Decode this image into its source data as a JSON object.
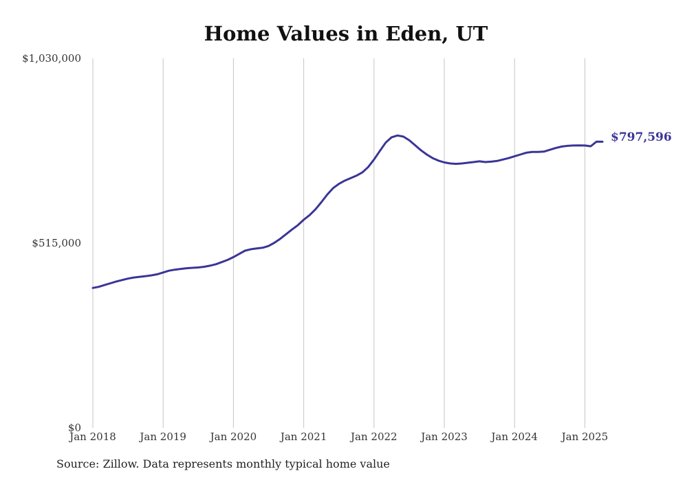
{
  "chart_data": {
    "type": "line",
    "title": "Home Values in Eden, UT",
    "source": "Source: Zillow. Data represents monthly typical home value",
    "ylim": [
      0,
      1030000
    ],
    "y_ticks": [
      {
        "value": 0,
        "label": "$0"
      },
      {
        "value": 515000,
        "label": "$515,000"
      },
      {
        "value": 1030000,
        "label": "$1,030,000"
      }
    ],
    "x_ticks": [
      {
        "date": "2018-01",
        "label": "Jan 2018"
      },
      {
        "date": "2019-01",
        "label": "Jan 2019"
      },
      {
        "date": "2020-01",
        "label": "Jan 2020"
      },
      {
        "date": "2021-01",
        "label": "Jan 2021"
      },
      {
        "date": "2022-01",
        "label": "Jan 2022"
      },
      {
        "date": "2023-01",
        "label": "Jan 2023"
      },
      {
        "date": "2024-01",
        "label": "Jan 2024"
      },
      {
        "date": "2025-01",
        "label": "Jan 2025"
      }
    ],
    "grid": {
      "vertical": true,
      "horizontal": false
    },
    "end_label": "$797,596",
    "colors": {
      "line": "#3a3597",
      "grid": "#c4c4c4"
    },
    "series": [
      {
        "x": [
          "2018-01",
          "2018-02",
          "2018-03",
          "2018-04",
          "2018-05",
          "2018-06",
          "2018-07",
          "2018-08",
          "2018-09",
          "2018-10",
          "2018-11",
          "2018-12",
          "2019-01",
          "2019-02",
          "2019-03",
          "2019-04",
          "2019-05",
          "2019-06",
          "2019-07",
          "2019-08",
          "2019-09",
          "2019-10",
          "2019-11",
          "2019-12",
          "2020-01",
          "2020-02",
          "2020-03",
          "2020-04",
          "2020-05",
          "2020-06",
          "2020-07",
          "2020-08",
          "2020-09",
          "2020-10",
          "2020-11",
          "2020-12",
          "2021-01",
          "2021-02",
          "2021-03",
          "2021-04",
          "2021-05",
          "2021-06",
          "2021-07",
          "2021-08",
          "2021-09",
          "2021-10",
          "2021-11",
          "2021-12",
          "2022-01",
          "2022-02",
          "2022-03",
          "2022-04",
          "2022-05",
          "2022-06",
          "2022-07",
          "2022-08",
          "2022-09",
          "2022-10",
          "2022-11",
          "2022-12",
          "2023-01",
          "2023-02",
          "2023-03",
          "2023-04",
          "2023-05",
          "2023-06",
          "2023-07",
          "2023-08",
          "2023-09",
          "2023-10",
          "2023-11",
          "2023-12",
          "2024-01",
          "2024-02",
          "2024-03",
          "2024-04",
          "2024-05",
          "2024-06",
          "2024-07",
          "2024-08",
          "2024-09",
          "2024-10",
          "2024-11",
          "2024-12",
          "2025-01",
          "2025-02",
          "2025-03",
          "2025-04"
        ],
        "values": [
          390000,
          393000,
          398000,
          403000,
          408000,
          412000,
          416000,
          419000,
          421000,
          423000,
          425000,
          428000,
          433000,
          438000,
          441000,
          443000,
          445000,
          446000,
          447000,
          449000,
          452000,
          456000,
          462000,
          468000,
          476000,
          485000,
          494000,
          498000,
          500000,
          502000,
          507000,
          516000,
          527000,
          540000,
          553000,
          565000,
          580000,
          593000,
          609000,
          629000,
          650000,
          668000,
          680000,
          689000,
          696000,
          703000,
          712000,
          727000,
          748000,
          772000,
          795000,
          810000,
          815000,
          812000,
          802000,
          788000,
          774000,
          762000,
          752000,
          745000,
          740000,
          737000,
          736000,
          737000,
          739000,
          741000,
          743000,
          741000,
          742000,
          744000,
          748000,
          752000,
          757000,
          762000,
          767000,
          769000,
          769000,
          770000,
          775000,
          780000,
          784000,
          786000,
          787000,
          787500,
          787000,
          785000,
          798000,
          797596
        ]
      }
    ]
  }
}
